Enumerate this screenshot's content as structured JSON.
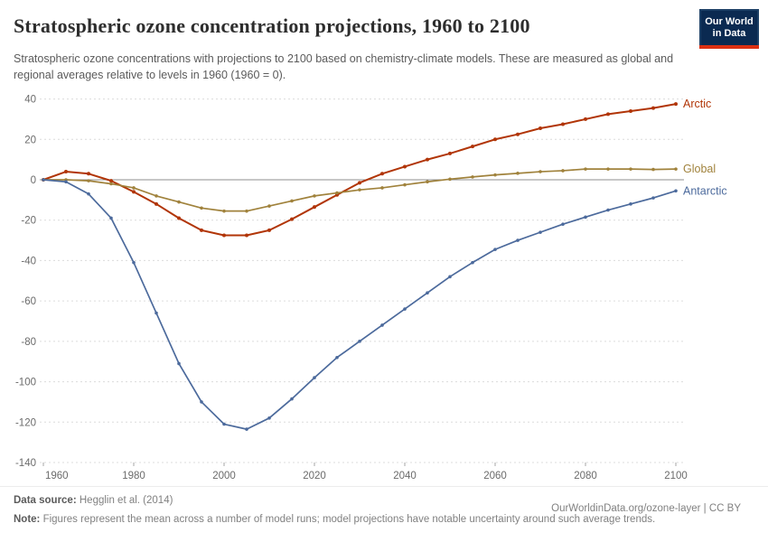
{
  "header": {
    "title": "Stratospheric ozone concentration projections, 1960 to 2100",
    "subtitle": "Stratospheric ozone concentrations with projections to 2100 based on chemistry-climate models. These are measured as global and regional averages relative to levels in 1960 (1960 = 0).",
    "logo": {
      "line1": "Our World",
      "line2": "in Data"
    }
  },
  "chart_data": {
    "type": "line",
    "title": "Stratospheric ozone concentration projections, 1960 to 2100",
    "xlabel": "",
    "ylabel": "",
    "xlim": [
      1960,
      2100
    ],
    "ylim": [
      -140,
      40
    ],
    "xticks": [
      1960,
      1980,
      2000,
      2020,
      2040,
      2060,
      2080,
      2100
    ],
    "yticks": [
      40,
      20,
      0,
      -20,
      -40,
      -60,
      -80,
      -100,
      -120,
      -140
    ],
    "grid": "dashed-horizontal",
    "zero_line": true,
    "legend_position": "line-end-labels",
    "x": [
      1960,
      1965,
      1970,
      1975,
      1980,
      1985,
      1990,
      1995,
      2000,
      2005,
      2010,
      2015,
      2020,
      2025,
      2030,
      2035,
      2040,
      2045,
      2050,
      2055,
      2060,
      2065,
      2070,
      2075,
      2080,
      2085,
      2090,
      2095,
      2100
    ],
    "series": [
      {
        "name": "Arctic",
        "color": "#b13507",
        "values": [
          0,
          4,
          3,
          -0.5,
          -6,
          -12,
          -19,
          -25,
          -27.5,
          -27.5,
          -25,
          -19.5,
          -13.5,
          -7.5,
          -1.5,
          3,
          6.5,
          10,
          13,
          16.5,
          20,
          22.5,
          25.5,
          27.5,
          30,
          32.5,
          34,
          35.5,
          37.5
        ]
      },
      {
        "name": "Global",
        "color": "#a0823c",
        "values": [
          0,
          0,
          -0.5,
          -2,
          -4,
          -8,
          -11,
          -14,
          -15.5,
          -15.5,
          -13,
          -10.5,
          -8,
          -6.5,
          -5,
          -4,
          -2.5,
          -1,
          0.3,
          1.4,
          2.4,
          3.2,
          4,
          4.5,
          5.3,
          5.3,
          5.3,
          5.1,
          5.3
        ]
      },
      {
        "name": "Antarctic",
        "color": "#4c6a9c",
        "values": [
          0,
          -1,
          -7,
          -19,
          -41,
          -66,
          -91,
          -110,
          -121,
          -123.5,
          -118,
          -108.5,
          -98,
          -88,
          -80,
          -72,
          -64,
          -56,
          -48,
          -41,
          -34.5,
          -30,
          -26,
          -22,
          -18.5,
          -15,
          -12,
          -9,
          -5.5
        ]
      }
    ]
  },
  "footer": {
    "source_label": "Data source:",
    "source_value": " Hegglin et al. (2014)",
    "link": "OurWorldinData.org/ozone-layer | CC BY",
    "note_label": "Note:",
    "note_value": " Figures represent the mean across a number of model runs; model projections have notable uncertainty around such average trends."
  }
}
